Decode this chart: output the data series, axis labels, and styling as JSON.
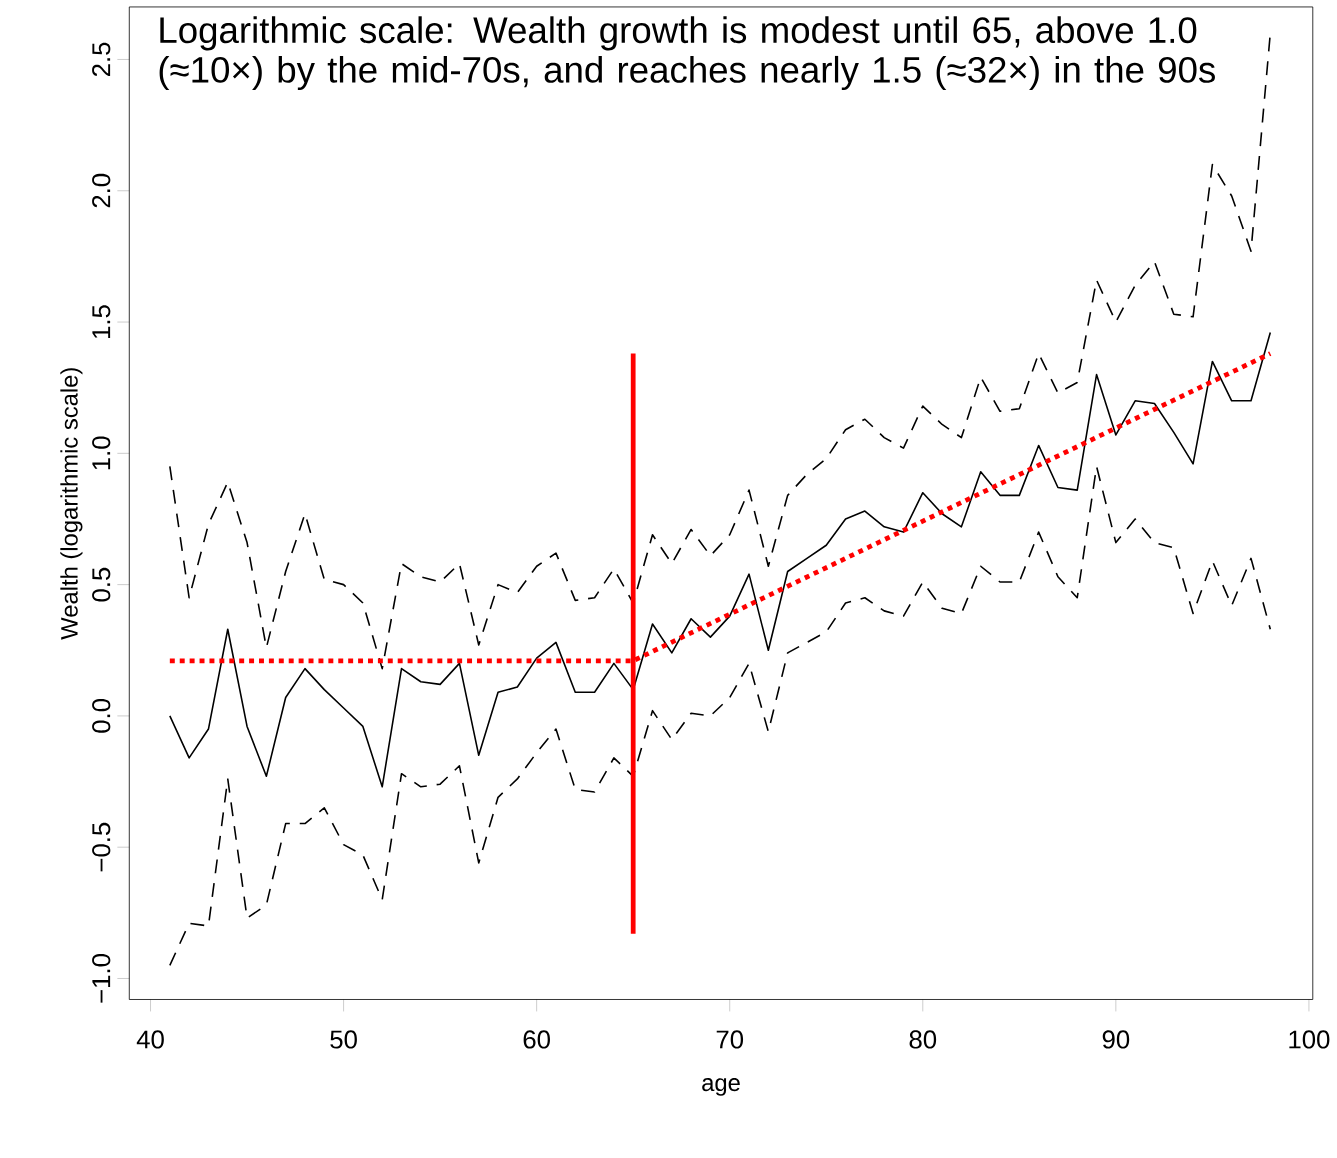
{
  "chart_data": {
    "type": "line",
    "annotations": [
      "Logarithmic scale: Wealth growth is modest until 65, above 1.0 (≈10×) by the mid-70s, and reaches nearly 1.5 (≈32×) in the 90s"
    ],
    "xlabel": "age",
    "ylabel": "Wealth (logarithmic scale)",
    "x": [
      41,
      42,
      43,
      44,
      45,
      46,
      47,
      48,
      49,
      50,
      51,
      52,
      53,
      54,
      55,
      56,
      57,
      58,
      59,
      60,
      61,
      62,
      63,
      64,
      65,
      66,
      67,
      68,
      69,
      70,
      71,
      72,
      73,
      74,
      75,
      76,
      77,
      78,
      79,
      80,
      81,
      82,
      83,
      84,
      85,
      86,
      87,
      88,
      89,
      90,
      91,
      92,
      93,
      94,
      95,
      96,
      97,
      98
    ],
    "series": [
      {
        "color": "#000000",
        "line_style": "solid",
        "values": [
          0.0,
          -0.16,
          -0.05,
          0.33,
          -0.04,
          -0.23,
          0.07,
          0.18,
          0.1,
          0.03,
          -0.04,
          -0.27,
          0.18,
          0.13,
          0.12,
          0.2,
          -0.15,
          0.09,
          0.11,
          0.22,
          0.28,
          0.09,
          0.09,
          0.2,
          0.1,
          0.35,
          0.24,
          0.37,
          0.3,
          0.38,
          0.54,
          0.25,
          0.55,
          0.6,
          0.65,
          0.75,
          0.78,
          0.72,
          0.7,
          0.85,
          0.77,
          0.72,
          0.93,
          0.84,
          0.84,
          1.03,
          0.87,
          0.86,
          1.3,
          1.07,
          1.2,
          1.19,
          1.08,
          0.96,
          1.35,
          1.2,
          1.2,
          1.46
        ]
      },
      {
        "color": "#000000",
        "line_style": "dashed",
        "values": [
          0.95,
          0.45,
          0.73,
          0.89,
          0.66,
          0.26,
          0.55,
          0.77,
          0.52,
          0.5,
          0.43,
          0.18,
          0.58,
          0.53,
          0.51,
          0.58,
          0.27,
          0.5,
          0.47,
          0.57,
          0.62,
          0.44,
          0.45,
          0.56,
          0.43,
          0.69,
          0.58,
          0.71,
          0.61,
          0.69,
          0.86,
          0.57,
          0.84,
          0.92,
          0.98,
          1.09,
          1.13,
          1.06,
          1.02,
          1.18,
          1.11,
          1.06,
          1.29,
          1.16,
          1.17,
          1.38,
          1.23,
          1.27,
          1.66,
          1.5,
          1.64,
          1.73,
          1.53,
          1.52,
          2.1,
          1.98,
          1.77,
          2.6
        ]
      },
      {
        "color": "#000000",
        "line_style": "dashed",
        "values": [
          -0.95,
          -0.79,
          -0.8,
          -0.24,
          -0.77,
          -0.72,
          -0.41,
          -0.41,
          -0.35,
          -0.49,
          -0.53,
          -0.7,
          -0.22,
          -0.27,
          -0.26,
          -0.19,
          -0.56,
          -0.31,
          -0.24,
          -0.14,
          -0.05,
          -0.28,
          -0.29,
          -0.16,
          -0.23,
          0.02,
          -0.09,
          0.01,
          0.0,
          0.07,
          0.2,
          -0.06,
          0.24,
          0.28,
          0.32,
          0.43,
          0.45,
          0.4,
          0.38,
          0.51,
          0.41,
          0.39,
          0.57,
          0.51,
          0.51,
          0.7,
          0.53,
          0.45,
          0.95,
          0.66,
          0.75,
          0.66,
          0.64,
          0.39,
          0.59,
          0.42,
          0.6,
          0.33
        ]
      },
      {
        "type": "line",
        "color": "#ff0000",
        "line_style": "solid",
        "x": [
          65,
          65
        ],
        "values": [
          -0.83,
          1.38
        ]
      },
      {
        "type": "line",
        "color": "#ff0000",
        "line_style": "dotted",
        "x": [
          41,
          65,
          98
        ],
        "values": [
          0.21,
          0.21,
          1.38
        ]
      }
    ],
    "xlim": [
      38.9,
      100.2
    ],
    "ylim": [
      -1.08,
      2.7
    ],
    "xticks": [
      40,
      50,
      60,
      70,
      80,
      90,
      100
    ],
    "yticks": [
      {
        "value": -1.0,
        "label": "−1.0"
      },
      {
        "value": -0.5,
        "label": "−0.5"
      },
      {
        "value": 0.0,
        "label": "0.0"
      },
      {
        "value": 0.5,
        "label": "0.5"
      },
      {
        "value": 1.0,
        "label": "1.0"
      },
      {
        "value": 1.5,
        "label": "1.5"
      },
      {
        "value": 2.0,
        "label": "2.0"
      },
      {
        "value": 2.5,
        "label": "2.5"
      }
    ],
    "grid": false,
    "marker": "none"
  }
}
